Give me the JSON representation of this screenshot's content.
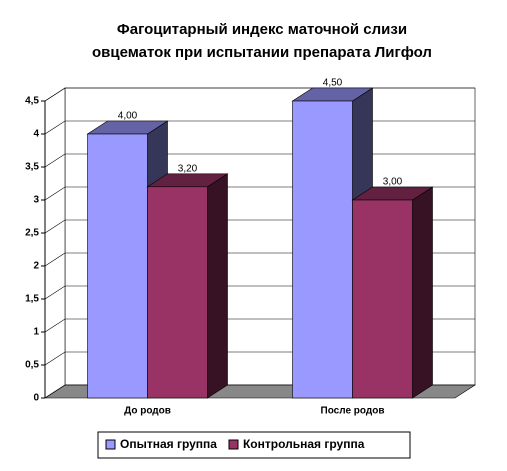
{
  "chart_data": {
    "type": "bar3d",
    "title": [
      "Фагоцитарный индекс маточной слизи",
      "овцематок при испытании препарата Лигфол"
    ],
    "categories": [
      "До родов",
      "После родов"
    ],
    "series": [
      {
        "name": "Опытная группа",
        "color": "#9999ff",
        "values": [
          4.0,
          4.5
        ],
        "value_labels": [
          "4,00",
          "4,50"
        ]
      },
      {
        "name": "Контрольная группа",
        "color": "#993366",
        "values": [
          3.2,
          3.0
        ],
        "value_labels": [
          "3,20",
          "3,00"
        ]
      }
    ],
    "ylim": [
      0,
      4.5
    ],
    "yticks": [
      0,
      {
        "value": 0.5,
        "label": "0,5"
      },
      1,
      {
        "value": 1.5,
        "label": "1,5"
      },
      2,
      {
        "value": 2.5,
        "label": "2,5"
      },
      3,
      {
        "value": 3.5,
        "label": "3,5"
      },
      4,
      {
        "value": 4.5,
        "label": "4,5"
      }
    ],
    "grid": true,
    "legend": "bottom"
  }
}
